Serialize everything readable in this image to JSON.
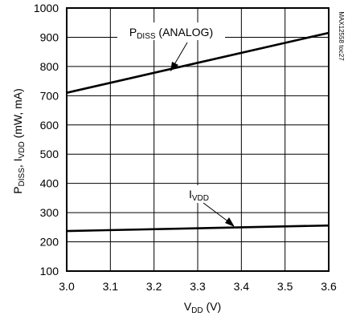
{
  "chart_data": {
    "type": "line",
    "xlabel": "V",
    "xlabel_sub": "DD",
    "xlabel_suffix": " (V)",
    "ylabel_prefix": "P",
    "ylabel_sub1": "DISS",
    "ylabel_middle": ", I",
    "ylabel_sub2": "VDD",
    "ylabel_suffix": " (mW, mA)",
    "xlim": [
      3.0,
      3.6
    ],
    "ylim": [
      100,
      1000
    ],
    "x_ticks": [
      3.0,
      3.1,
      3.2,
      3.3,
      3.4,
      3.5,
      3.6
    ],
    "x_tick_labels": [
      "3.0",
      "3.1",
      "3.2",
      "3.3",
      "3.4",
      "3.5",
      "3.6"
    ],
    "y_ticks": [
      100,
      200,
      300,
      400,
      500,
      600,
      700,
      800,
      900,
      1000
    ],
    "y_tick_labels": [
      "100",
      "200",
      "300",
      "400",
      "500",
      "600",
      "700",
      "800",
      "900",
      "1000"
    ],
    "grid": true,
    "series": [
      {
        "name_prefix": "P",
        "name_sub": "DISS",
        "name_suffix": " (ANALOG)",
        "x": [
          3.0,
          3.6
        ],
        "y": [
          710,
          915
        ]
      },
      {
        "name_prefix": "I",
        "name_sub": "VDD",
        "name_suffix": "",
        "x": [
          3.0,
          3.6
        ],
        "y": [
          237,
          256
        ]
      }
    ],
    "watermark": "MAX12558 toc27"
  }
}
